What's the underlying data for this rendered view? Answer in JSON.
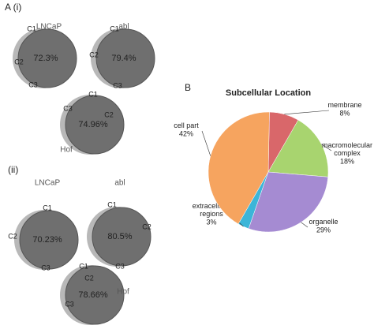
{
  "venn_panels": [
    {
      "label": "A (i)",
      "diagrams": [
        {
          "name": "LNCaP",
          "percent": "72.3%",
          "labels": [
            "C1",
            "C2",
            "C3"
          ]
        },
        {
          "name": "abl",
          "percent": "79.4%",
          "labels": [
            "C1",
            "C2",
            "C3"
          ]
        },
        {
          "name": "Hof",
          "percent": "74.96%",
          "labels": [
            "C1",
            "C2",
            "C3"
          ]
        }
      ]
    },
    {
      "label": "(ii)",
      "diagrams": [
        {
          "name": "LNCaP",
          "percent": "70.23%",
          "labels": [
            "C1",
            "C2",
            "C3"
          ]
        },
        {
          "name": "abl",
          "percent": "80.5%",
          "labels": [
            "C1",
            "C2",
            "C3"
          ]
        },
        {
          "name": "Hof",
          "percent": "78.66%",
          "labels": [
            "C1",
            "C2",
            "C3"
          ]
        }
      ]
    }
  ],
  "chart_data": {
    "type": "pie",
    "panel_label": "B",
    "title": "Subcellular Location",
    "categories": [
      "membrane",
      "macromolecular complex",
      "organelle",
      "extracellular regions",
      "cell part"
    ],
    "values": [
      8,
      18,
      29,
      3,
      42
    ],
    "value_labels": [
      "8%",
      "18%",
      "29%",
      "3%",
      "42%"
    ],
    "colors": [
      "#d9676a",
      "#a8d46f",
      "#a58bd2",
      "#3cb5d8",
      "#f6a45f"
    ]
  }
}
